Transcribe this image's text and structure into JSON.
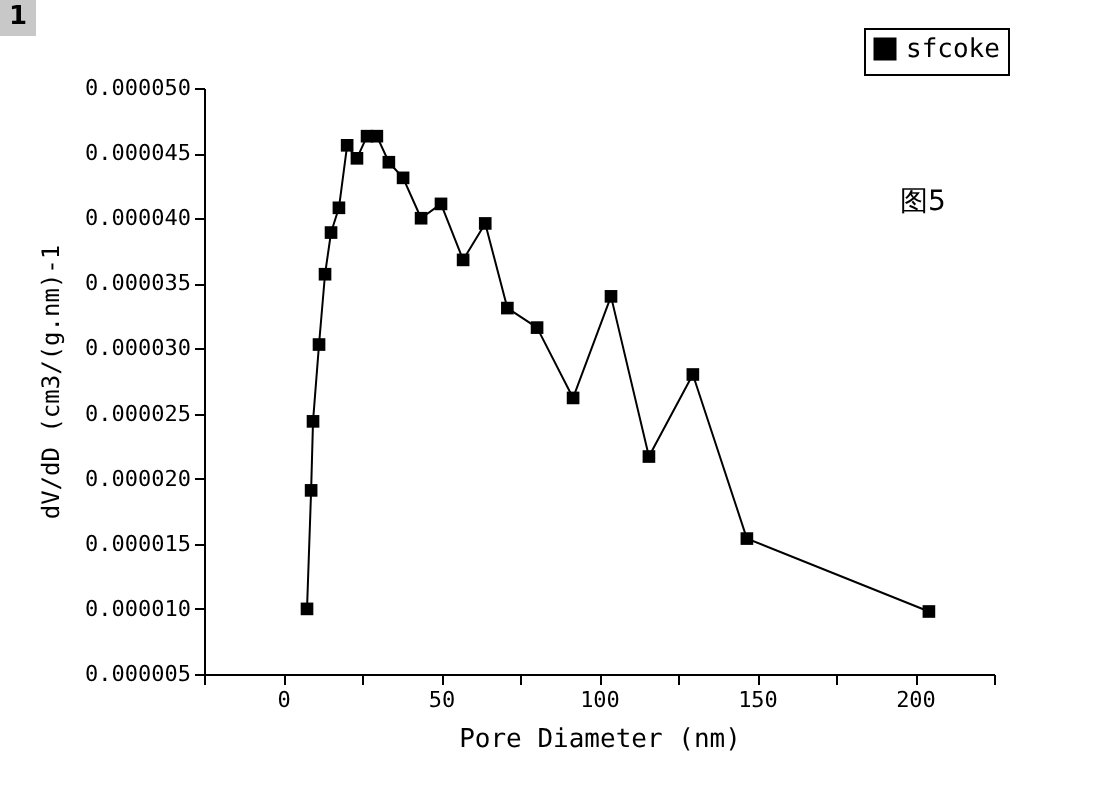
{
  "chart_data": {
    "type": "line",
    "xlabel": "Pore Diameter (nm)",
    "ylabel": "dV/dD (cm3/(g.nm)-1",
    "x": [
      7.6,
      8.9,
      9.5,
      11.4,
      13.3,
      15.2,
      17.7,
      20.3,
      23.4,
      26.6,
      29.7,
      33.5,
      38,
      43.7,
      50,
      57,
      64,
      71,
      80.4,
      91.8,
      103.8,
      115.8,
      129.7,
      146.8,
      204.4
    ],
    "series": [
      {
        "name": "sfcoke",
        "color": "#000000",
        "values": [
          1e-05,
          1.91e-05,
          2.44e-05,
          3.03e-05,
          3.57e-05,
          3.89e-05,
          4.08e-05,
          4.56e-05,
          4.46e-05,
          4.63e-05,
          4.63e-05,
          4.43e-05,
          4.31e-05,
          4e-05,
          4.11e-05,
          3.68e-05,
          3.96e-05,
          3.31e-05,
          3.16e-05,
          2.62e-05,
          3.4e-05,
          2.17e-05,
          2.8e-05,
          1.54e-05,
          9.8e-06
        ]
      }
    ],
    "xlim": [
      -25,
      225
    ],
    "xticks": [
      {
        "value": -25,
        "label": null
      },
      0,
      {
        "value": 25,
        "label": null
      },
      50,
      {
        "value": 75,
        "label": null
      },
      100,
      {
        "value": 125,
        "label": null
      },
      150,
      {
        "value": 175,
        "label": null
      },
      200,
      {
        "value": 225,
        "label": null
      }
    ],
    "ylim": [
      5e-06,
      5e-05
    ],
    "yticks": [
      {
        "value": 5e-06,
        "label": "0.000005"
      },
      {
        "value": 1e-05,
        "label": "0.000010"
      },
      {
        "value": 1.5e-05,
        "label": "0.000015"
      },
      {
        "value": 2e-05,
        "label": "0.000020"
      },
      {
        "value": 2.5e-05,
        "label": "0.000025"
      },
      {
        "value": 3e-05,
        "label": "0.000030"
      },
      {
        "value": 3.5e-05,
        "label": "0.000035"
      },
      {
        "value": 4e-05,
        "label": "0.000040"
      },
      {
        "value": 4.5e-05,
        "label": "0.000045"
      },
      {
        "value": 5e-05,
        "label": "0.000050"
      }
    ],
    "annotations": [
      "图5",
      "1"
    ],
    "grid": false,
    "legend": "top right",
    "marker": "square",
    "line_style": "solid"
  }
}
